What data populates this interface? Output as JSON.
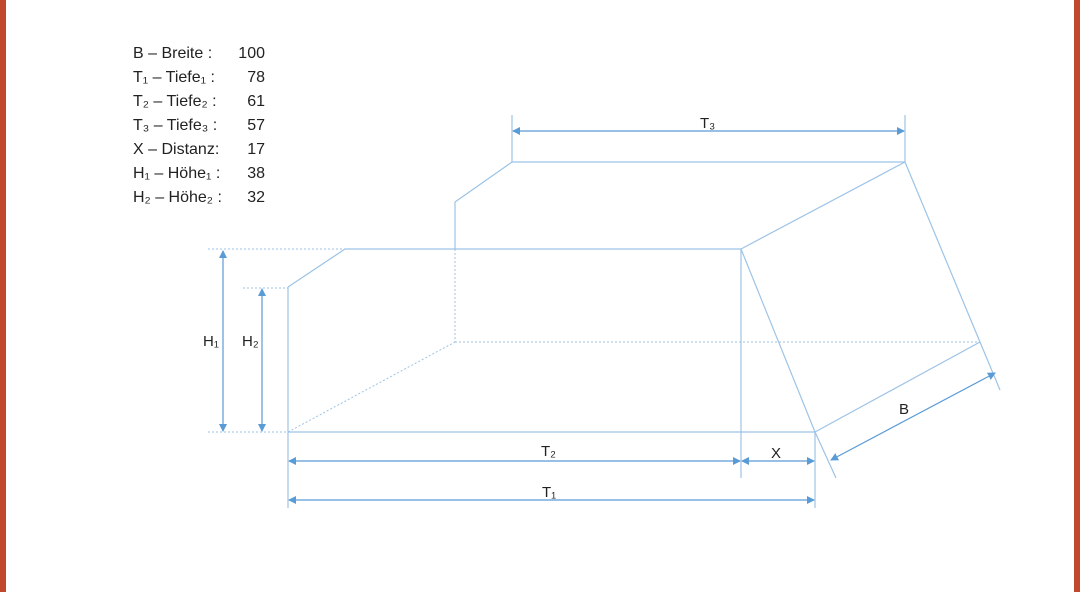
{
  "legend": [
    {
      "label": "B – Breite :",
      "value": "100"
    },
    {
      "label": "T₁ – Tiefe₁ :",
      "value": "78"
    },
    {
      "label": "T₂ – Tiefe₂ :",
      "value": "61"
    },
    {
      "label": "T₃ – Tiefe₃ :",
      "value": "57"
    },
    {
      "label": "X – Distanz:",
      "value": "17"
    },
    {
      "label": "H₁ – Höhe₁ :",
      "value": "38"
    },
    {
      "label": "H₂ – Höhe₂ :",
      "value": "32"
    }
  ],
  "labels": {
    "t3": "T₃",
    "t2": "T₂",
    "t1": "T₁",
    "x": "X",
    "b": "B",
    "h1": "H₁",
    "h2": "H₂"
  },
  "colors": {
    "line": "#9dc3e6",
    "arrow": "#5b9bd5",
    "border": "#c0482c"
  }
}
